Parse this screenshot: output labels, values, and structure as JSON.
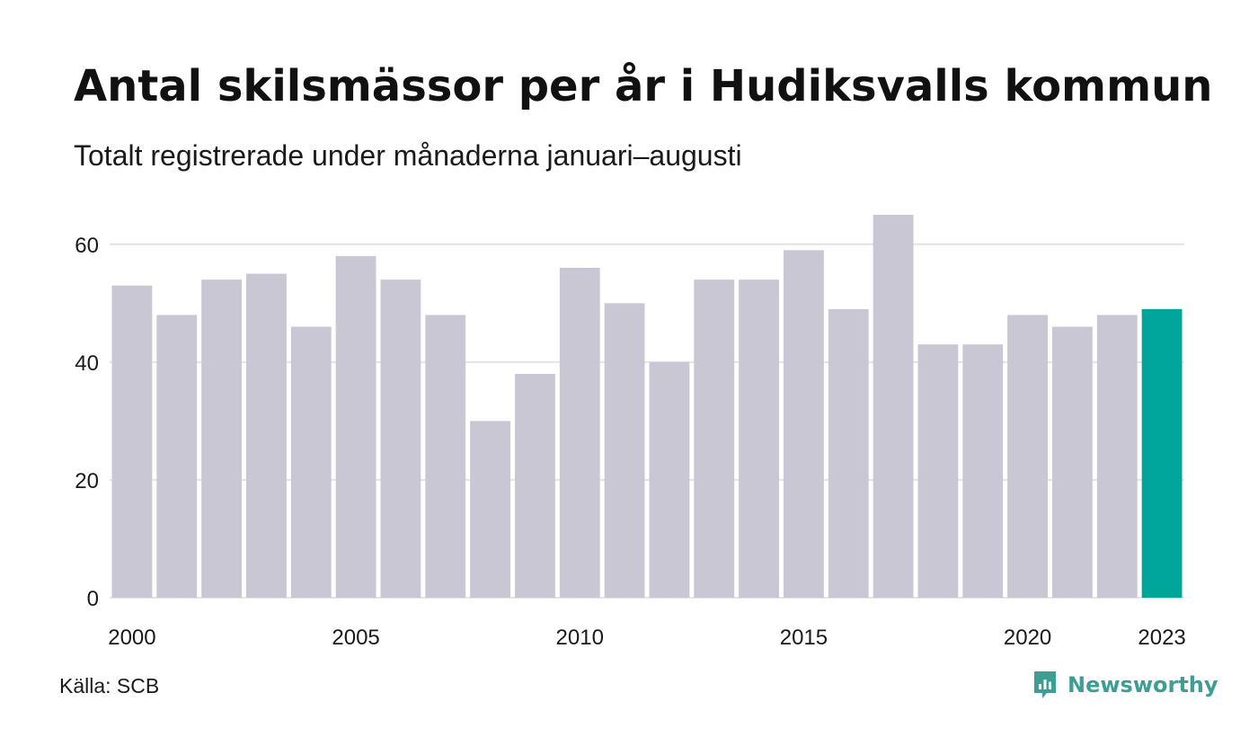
{
  "chart_data": {
    "type": "bar",
    "title": "Antal skilsmässor per år i Hudiksvalls kommun",
    "subtitle": "Totalt registrerade under månaderna januari–augusti",
    "categories": [
      "2000",
      "2001",
      "2002",
      "2003",
      "2004",
      "2005",
      "2006",
      "2007",
      "2008",
      "2009",
      "2010",
      "2011",
      "2012",
      "2013",
      "2014",
      "2015",
      "2016",
      "2017",
      "2018",
      "2019",
      "2020",
      "2021",
      "2022",
      "2023"
    ],
    "values": [
      53,
      48,
      54,
      55,
      46,
      58,
      54,
      48,
      30,
      38,
      56,
      50,
      40,
      54,
      54,
      59,
      49,
      65,
      43,
      43,
      48,
      46,
      48,
      49
    ],
    "x_tick_labels": [
      "2000",
      "2005",
      "2010",
      "2015",
      "2020",
      "2023"
    ],
    "y_ticks": [
      0,
      20,
      40,
      60
    ],
    "ylim": [
      0,
      65
    ],
    "grid": true,
    "highlight_category": "2023",
    "colors": {
      "bar": "#c9c7d3",
      "highlight": "#00a59a",
      "grid": "#e3e3e8"
    }
  },
  "footer": {
    "source": "Källa: SCB",
    "brand": "Newsworthy",
    "brand_icon": "newsworthy-logo-icon",
    "brand_color": "#3d9e96"
  }
}
